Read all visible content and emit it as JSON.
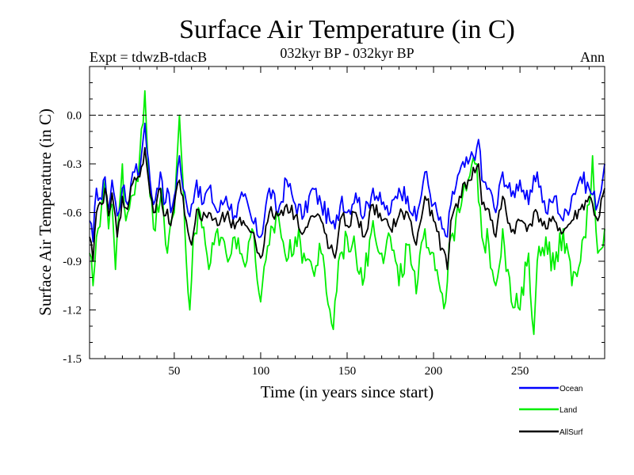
{
  "chart_data": {
    "type": "line",
    "title": "Surface Air Temperature (in C)",
    "subtitle": "032kyr BP - 032kyr BP",
    "left_label": "Expt = tdwzB-tdacB",
    "right_label": "Ann",
    "xlabel": "Time (in years since start)",
    "ylabel": "Surface Air Temperature (in C)",
    "xlim": [
      1,
      299
    ],
    "ylim": [
      -1.5,
      0.3
    ],
    "xticks": [
      50,
      100,
      150,
      200,
      250
    ],
    "xtick_labels": [
      "50",
      "100",
      "150",
      "200",
      "250"
    ],
    "yticks": [
      -1.5,
      -1.2,
      -0.9,
      -0.6,
      -0.3,
      0.0
    ],
    "ytick_labels": [
      "-1.5",
      "-1.2",
      "-0.9",
      "-0.6",
      "-0.3",
      "0.0"
    ],
    "reference_line": 0.0,
    "grid": false,
    "legend_position": "bottom-right",
    "series": [
      {
        "name": "Ocean",
        "color": "#0000ff",
        "keypoints": [
          [
            1,
            -0.65
          ],
          [
            3,
            -0.78
          ],
          [
            5,
            -0.45
          ],
          [
            8,
            -0.52
          ],
          [
            10,
            -0.38
          ],
          [
            12,
            -0.58
          ],
          [
            14,
            -0.4
          ],
          [
            17,
            -0.62
          ],
          [
            20,
            -0.45
          ],
          [
            23,
            -0.55
          ],
          [
            26,
            -0.35
          ],
          [
            28,
            -0.3
          ],
          [
            30,
            -0.35
          ],
          [
            31,
            -0.25
          ],
          [
            32,
            -0.15
          ],
          [
            33,
            -0.05
          ],
          [
            34,
            -0.2
          ],
          [
            36,
            -0.4
          ],
          [
            38,
            -0.55
          ],
          [
            40,
            -0.45
          ],
          [
            42,
            -0.35
          ],
          [
            44,
            -0.55
          ],
          [
            46,
            -0.45
          ],
          [
            48,
            -0.6
          ],
          [
            50,
            -0.5
          ],
          [
            53,
            -0.25
          ],
          [
            55,
            -0.45
          ],
          [
            58,
            -0.6
          ],
          [
            60,
            -0.55
          ],
          [
            63,
            -0.4
          ],
          [
            66,
            -0.55
          ],
          [
            70,
            -0.45
          ],
          [
            75,
            -0.6
          ],
          [
            80,
            -0.5
          ],
          [
            85,
            -0.62
          ],
          [
            90,
            -0.5
          ],
          [
            95,
            -0.65
          ],
          [
            100,
            -0.75
          ],
          [
            105,
            -0.45
          ],
          [
            110,
            -0.6
          ],
          [
            115,
            -0.4
          ],
          [
            120,
            -0.55
          ],
          [
            125,
            -0.62
          ],
          [
            130,
            -0.45
          ],
          [
            135,
            -0.55
          ],
          [
            140,
            -0.65
          ],
          [
            143,
            -0.7
          ],
          [
            147,
            -0.5
          ],
          [
            150,
            -0.6
          ],
          [
            155,
            -0.48
          ],
          [
            160,
            -0.62
          ],
          [
            165,
            -0.45
          ],
          [
            170,
            -0.55
          ],
          [
            175,
            -0.6
          ],
          [
            180,
            -0.45
          ],
          [
            185,
            -0.5
          ],
          [
            190,
            -0.65
          ],
          [
            195,
            -0.35
          ],
          [
            200,
            -0.55
          ],
          [
            205,
            -0.7
          ],
          [
            208,
            -0.75
          ],
          [
            210,
            -0.55
          ],
          [
            215,
            -0.35
          ],
          [
            220,
            -0.3
          ],
          [
            225,
            -0.2
          ],
          [
            226,
            -0.15
          ],
          [
            228,
            -0.4
          ],
          [
            232,
            -0.45
          ],
          [
            236,
            -0.6
          ],
          [
            240,
            -0.35
          ],
          [
            245,
            -0.5
          ],
          [
            250,
            -0.4
          ],
          [
            255,
            -0.55
          ],
          [
            260,
            -0.35
          ],
          [
            265,
            -0.6
          ],
          [
            270,
            -0.5
          ],
          [
            275,
            -0.65
          ],
          [
            280,
            -0.5
          ],
          [
            285,
            -0.38
          ],
          [
            290,
            -0.45
          ],
          [
            295,
            -0.55
          ],
          [
            299,
            -0.3
          ]
        ]
      },
      {
        "name": "Land",
        "color": "#00ee00",
        "keypoints": [
          [
            1,
            -0.85
          ],
          [
            3,
            -1.05
          ],
          [
            5,
            -0.75
          ],
          [
            8,
            -0.55
          ],
          [
            10,
            -0.4
          ],
          [
            12,
            -0.7
          ],
          [
            14,
            -0.55
          ],
          [
            16,
            -0.95
          ],
          [
            18,
            -0.6
          ],
          [
            20,
            -0.3
          ],
          [
            22,
            -0.65
          ],
          [
            25,
            -0.5
          ],
          [
            28,
            -0.4
          ],
          [
            30,
            -0.25
          ],
          [
            32,
            -0.05
          ],
          [
            33,
            0.15
          ],
          [
            34,
            -0.1
          ],
          [
            36,
            -0.5
          ],
          [
            38,
            -0.7
          ],
          [
            40,
            -0.55
          ],
          [
            43,
            -0.45
          ],
          [
            46,
            -0.85
          ],
          [
            50,
            -0.6
          ],
          [
            52,
            -0.2
          ],
          [
            53,
            0.0
          ],
          [
            55,
            -0.4
          ],
          [
            57,
            -0.9
          ],
          [
            59,
            -1.2
          ],
          [
            61,
            -0.75
          ],
          [
            65,
            -0.6
          ],
          [
            70,
            -0.95
          ],
          [
            75,
            -0.7
          ],
          [
            80,
            -0.85
          ],
          [
            85,
            -0.75
          ],
          [
            90,
            -0.9
          ],
          [
            95,
            -0.7
          ],
          [
            100,
            -1.15
          ],
          [
            105,
            -0.8
          ],
          [
            110,
            -0.6
          ],
          [
            115,
            -0.9
          ],
          [
            120,
            -0.75
          ],
          [
            125,
            -0.85
          ],
          [
            130,
            -0.95
          ],
          [
            135,
            -0.85
          ],
          [
            140,
            -1.2
          ],
          [
            142,
            -1.32
          ],
          [
            145,
            -0.9
          ],
          [
            150,
            -0.75
          ],
          [
            155,
            -0.85
          ],
          [
            160,
            -1.0
          ],
          [
            165,
            -0.65
          ],
          [
            170,
            -0.85
          ],
          [
            175,
            -0.75
          ],
          [
            180,
            -1.05
          ],
          [
            185,
            -0.8
          ],
          [
            190,
            -1.1
          ],
          [
            195,
            -0.7
          ],
          [
            200,
            -0.85
          ],
          [
            205,
            -1.1
          ],
          [
            207,
            -1.15
          ],
          [
            210,
            -0.75
          ],
          [
            215,
            -0.6
          ],
          [
            220,
            -0.4
          ],
          [
            225,
            -0.3
          ],
          [
            228,
            -0.75
          ],
          [
            232,
            -0.8
          ],
          [
            236,
            -1.05
          ],
          [
            240,
            -0.7
          ],
          [
            245,
            -1.15
          ],
          [
            250,
            -1.2
          ],
          [
            255,
            -0.85
          ],
          [
            258,
            -1.35
          ],
          [
            260,
            -0.9
          ],
          [
            265,
            -0.75
          ],
          [
            270,
            -0.95
          ],
          [
            275,
            -0.7
          ],
          [
            280,
            -1.05
          ],
          [
            285,
            -0.9
          ],
          [
            290,
            -0.55
          ],
          [
            292,
            -0.25
          ],
          [
            295,
            -0.85
          ],
          [
            299,
            -0.7
          ]
        ]
      },
      {
        "name": "AllSurf",
        "color": "#000000",
        "keypoints": [
          [
            1,
            -0.75
          ],
          [
            3,
            -0.9
          ],
          [
            5,
            -0.6
          ],
          [
            8,
            -0.55
          ],
          [
            10,
            -0.45
          ],
          [
            12,
            -0.62
          ],
          [
            14,
            -0.48
          ],
          [
            17,
            -0.75
          ],
          [
            20,
            -0.5
          ],
          [
            23,
            -0.58
          ],
          [
            26,
            -0.42
          ],
          [
            28,
            -0.4
          ],
          [
            30,
            -0.38
          ],
          [
            32,
            -0.3
          ],
          [
            33,
            -0.2
          ],
          [
            34,
            -0.3
          ],
          [
            36,
            -0.48
          ],
          [
            38,
            -0.6
          ],
          [
            40,
            -0.52
          ],
          [
            42,
            -0.45
          ],
          [
            44,
            -0.62
          ],
          [
            46,
            -0.58
          ],
          [
            48,
            -0.68
          ],
          [
            50,
            -0.55
          ],
          [
            53,
            -0.4
          ],
          [
            55,
            -0.5
          ],
          [
            58,
            -0.72
          ],
          [
            60,
            -0.8
          ],
          [
            63,
            -0.58
          ],
          [
            66,
            -0.65
          ],
          [
            70,
            -0.6
          ],
          [
            75,
            -0.68
          ],
          [
            80,
            -0.62
          ],
          [
            85,
            -0.7
          ],
          [
            90,
            -0.65
          ],
          [
            95,
            -0.72
          ],
          [
            100,
            -0.88
          ],
          [
            105,
            -0.6
          ],
          [
            110,
            -0.62
          ],
          [
            115,
            -0.55
          ],
          [
            120,
            -0.62
          ],
          [
            125,
            -0.72
          ],
          [
            130,
            -0.62
          ],
          [
            135,
            -0.65
          ],
          [
            140,
            -0.82
          ],
          [
            143,
            -0.88
          ],
          [
            147,
            -0.62
          ],
          [
            150,
            -0.68
          ],
          [
            155,
            -0.6
          ],
          [
            160,
            -0.75
          ],
          [
            165,
            -0.55
          ],
          [
            170,
            -0.65
          ],
          [
            175,
            -0.7
          ],
          [
            180,
            -0.62
          ],
          [
            185,
            -0.6
          ],
          [
            190,
            -0.8
          ],
          [
            195,
            -0.5
          ],
          [
            200,
            -0.65
          ],
          [
            205,
            -0.82
          ],
          [
            208,
            -0.95
          ],
          [
            210,
            -0.65
          ],
          [
            215,
            -0.5
          ],
          [
            220,
            -0.4
          ],
          [
            225,
            -0.32
          ],
          [
            226,
            -0.3
          ],
          [
            228,
            -0.55
          ],
          [
            232,
            -0.58
          ],
          [
            236,
            -0.75
          ],
          [
            240,
            -0.5
          ],
          [
            245,
            -0.72
          ],
          [
            250,
            -0.65
          ],
          [
            255,
            -0.68
          ],
          [
            260,
            -0.6
          ],
          [
            265,
            -0.7
          ],
          [
            270,
            -0.65
          ],
          [
            275,
            -0.72
          ],
          [
            280,
            -0.65
          ],
          [
            285,
            -0.58
          ],
          [
            290,
            -0.5
          ],
          [
            295,
            -0.65
          ],
          [
            299,
            -0.45
          ]
        ]
      }
    ]
  }
}
